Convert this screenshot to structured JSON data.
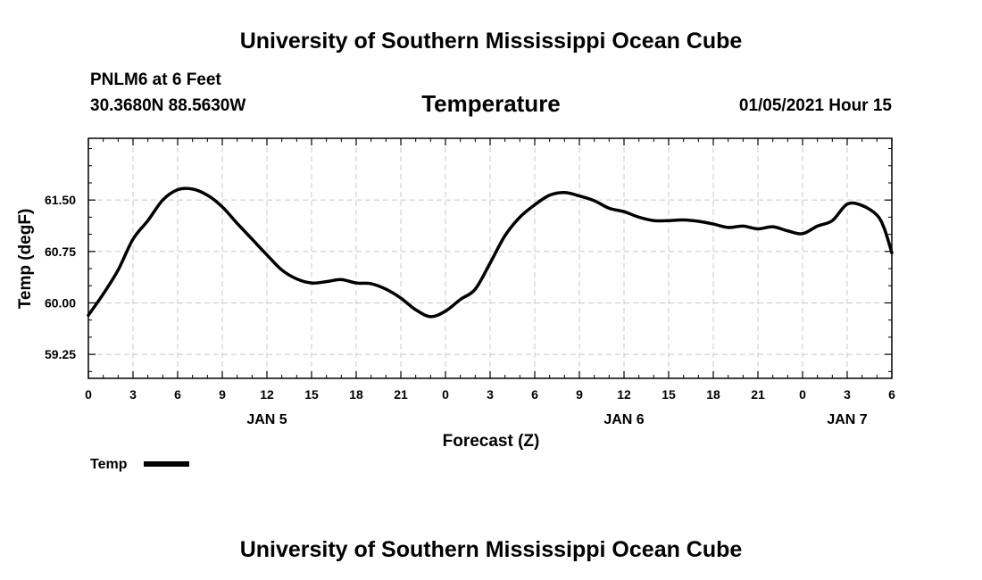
{
  "header": {
    "title": "University of Southern Mississippi Ocean Cube",
    "station": "PNLM6 at 6 Feet",
    "coords": "30.3680N 88.5630W",
    "datetime": "01/05/2021 Hour 15"
  },
  "footer": {
    "title": "University of Southern Mississippi Ocean Cube"
  },
  "chart_data": {
    "type": "line",
    "title": "Temperature",
    "xlabel": "Forecast (Z)",
    "ylabel": "Temp (degF)",
    "ylim": [
      58.9,
      62.4
    ],
    "xlim": [
      0,
      54
    ],
    "grid": true,
    "grid_color": "#c8c8c8",
    "line_color": "#000000",
    "legend_position": "bottom-left",
    "x_ticks": [
      {
        "x": 0,
        "label": "0"
      },
      {
        "x": 3,
        "label": "3"
      },
      {
        "x": 6,
        "label": "6"
      },
      {
        "x": 9,
        "label": "9"
      },
      {
        "x": 12,
        "label": "12"
      },
      {
        "x": 15,
        "label": "15"
      },
      {
        "x": 18,
        "label": "18"
      },
      {
        "x": 21,
        "label": "21"
      },
      {
        "x": 24,
        "label": "0"
      },
      {
        "x": 27,
        "label": "3"
      },
      {
        "x": 30,
        "label": "6"
      },
      {
        "x": 33,
        "label": "9"
      },
      {
        "x": 36,
        "label": "12"
      },
      {
        "x": 39,
        "label": "15"
      },
      {
        "x": 42,
        "label": "18"
      },
      {
        "x": 45,
        "label": "21"
      },
      {
        "x": 48,
        "label": "0"
      },
      {
        "x": 51,
        "label": "3"
      },
      {
        "x": 54,
        "label": "6"
      }
    ],
    "date_labels": [
      {
        "x": 12,
        "label": "JAN 5"
      },
      {
        "x": 36,
        "label": "JAN 6"
      },
      {
        "x": 51,
        "label": "JAN 7"
      }
    ],
    "y_ticks": [
      59.25,
      60.0,
      60.75,
      61.5
    ],
    "y_tick_labels": [
      "59.25",
      "60.00",
      "60.75",
      "61.50"
    ],
    "series": [
      {
        "name": "Temp",
        "x": [
          0,
          1,
          2,
          3,
          4,
          5,
          6,
          7,
          8,
          9,
          10,
          11,
          12,
          13,
          14,
          15,
          16,
          17,
          18,
          19,
          20,
          21,
          22,
          23,
          24,
          25,
          26,
          27,
          28,
          29,
          30,
          31,
          32,
          33,
          34,
          35,
          36,
          37,
          38,
          39,
          40,
          41,
          42,
          43,
          44,
          45,
          46,
          47,
          48,
          49,
          50,
          51,
          52,
          53,
          53.5,
          54
        ],
        "values": [
          59.82,
          60.13,
          60.48,
          60.93,
          61.2,
          61.5,
          61.65,
          61.66,
          61.57,
          61.4,
          61.16,
          60.93,
          60.7,
          60.48,
          60.35,
          60.29,
          60.31,
          60.34,
          60.29,
          60.28,
          60.2,
          60.07,
          59.9,
          59.8,
          59.88,
          60.05,
          60.2,
          60.58,
          60.98,
          61.25,
          61.43,
          61.57,
          61.61,
          61.56,
          61.49,
          61.38,
          61.33,
          61.25,
          61.2,
          61.2,
          61.21,
          61.19,
          61.15,
          61.1,
          61.12,
          61.08,
          61.11,
          61.05,
          61.01,
          61.12,
          61.2,
          61.44,
          61.42,
          61.28,
          61.08,
          60.73
        ]
      }
    ]
  }
}
